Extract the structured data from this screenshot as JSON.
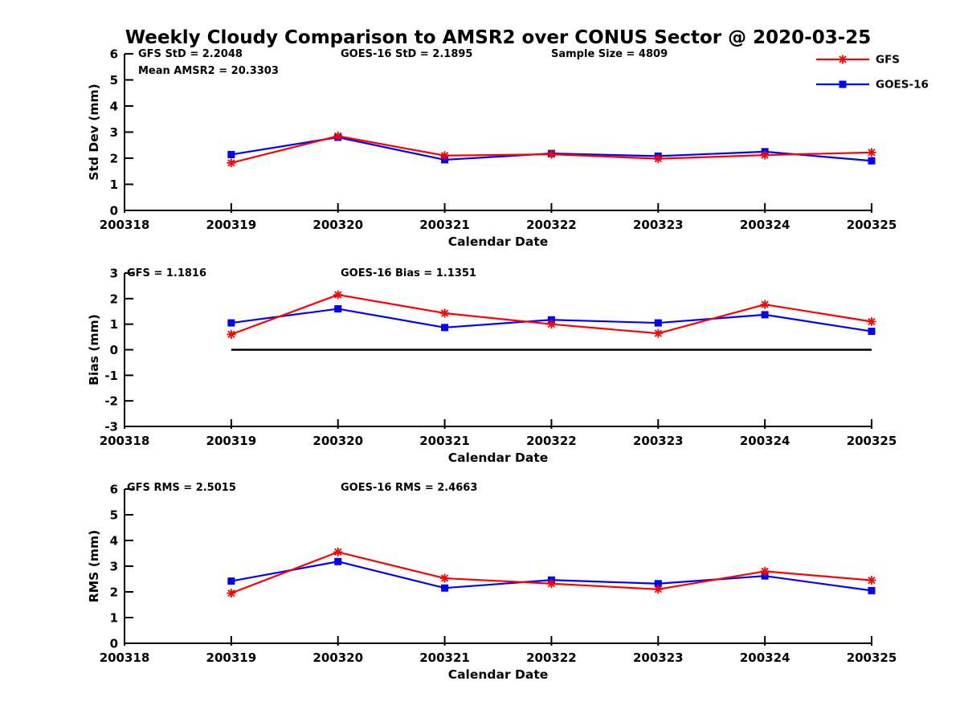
{
  "title": "Weekly Cloudy Comparison to AMSR2 over CONUS Sector @ 2020-03-25",
  "colors": {
    "gfs": "#ff0000",
    "goes16": "#0000ff",
    "axis": "#000000",
    "zero_line": "#000000"
  },
  "legend": {
    "position": "top-right",
    "items": [
      {
        "label": "GFS",
        "color": "#ff0000",
        "marker": "asterisk"
      },
      {
        "label": "GOES-16",
        "color": "#0000ff",
        "marker": "square"
      }
    ]
  },
  "chart_data": [
    {
      "type": "line",
      "ylabel": "Std Dev (mm)",
      "xlabel": "Calendar Date",
      "ylim": [
        0,
        6
      ],
      "yticks": [
        0,
        1,
        2,
        3,
        4,
        5,
        6
      ],
      "grid": false,
      "categories": [
        "200318",
        "200319",
        "200320",
        "200321",
        "200322",
        "200323",
        "200324",
        "200325"
      ],
      "annotations": [
        {
          "text": "GFS StD = 2.2048"
        },
        {
          "text": "Mean AMSR2 = 20.3303"
        },
        {
          "text": "GOES-16 StD = 2.1895"
        },
        {
          "text": "Sample Size = 4809"
        }
      ],
      "series": [
        {
          "name": "GFS",
          "color": "#ff0000",
          "marker": "asterisk",
          "x": [
            "200319",
            "200320",
            "200321",
            "200322",
            "200323",
            "200324",
            "200325"
          ],
          "values": [
            1.82,
            2.85,
            2.1,
            2.15,
            1.98,
            2.12,
            2.22
          ]
        },
        {
          "name": "GOES-16",
          "color": "#0000ff",
          "marker": "square",
          "x": [
            "200319",
            "200320",
            "200321",
            "200322",
            "200323",
            "200324",
            "200325"
          ],
          "values": [
            2.14,
            2.8,
            1.94,
            2.18,
            2.08,
            2.25,
            1.9
          ]
        }
      ]
    },
    {
      "type": "line",
      "ylabel": "Bias (mm)",
      "xlabel": "Calendar Date",
      "ylim": [
        -3,
        3
      ],
      "yticks": [
        -3,
        -2,
        -1,
        0,
        1,
        2,
        3
      ],
      "grid": false,
      "zero_line": true,
      "categories": [
        "200318",
        "200319",
        "200320",
        "200321",
        "200322",
        "200323",
        "200324",
        "200325"
      ],
      "annotations": [
        {
          "text": "GFS = 1.1816"
        },
        {
          "text": "GOES-16 Bias = 1.1351"
        }
      ],
      "series": [
        {
          "name": "GFS",
          "color": "#ff0000",
          "marker": "asterisk",
          "x": [
            "200319",
            "200320",
            "200321",
            "200322",
            "200323",
            "200324",
            "200325"
          ],
          "values": [
            0.6,
            2.15,
            1.43,
            1.0,
            0.64,
            1.77,
            1.1
          ]
        },
        {
          "name": "GOES-16",
          "color": "#0000ff",
          "marker": "square",
          "x": [
            "200319",
            "200320",
            "200321",
            "200322",
            "200323",
            "200324",
            "200325"
          ],
          "values": [
            1.05,
            1.6,
            0.87,
            1.17,
            1.05,
            1.37,
            0.72
          ]
        }
      ]
    },
    {
      "type": "line",
      "ylabel": "RMS (mm)",
      "xlabel": "Calendar Date",
      "ylim": [
        0,
        6
      ],
      "yticks": [
        0,
        1,
        2,
        3,
        4,
        5,
        6
      ],
      "grid": false,
      "categories": [
        "200318",
        "200319",
        "200320",
        "200321",
        "200322",
        "200323",
        "200324",
        "200325"
      ],
      "annotations": [
        {
          "text": "GFS RMS = 2.5015"
        },
        {
          "text": "GOES-16 RMS = 2.4663"
        }
      ],
      "series": [
        {
          "name": "GFS",
          "color": "#ff0000",
          "marker": "asterisk",
          "x": [
            "200319",
            "200320",
            "200321",
            "200322",
            "200323",
            "200324",
            "200325"
          ],
          "values": [
            1.95,
            3.55,
            2.53,
            2.32,
            2.1,
            2.8,
            2.45
          ]
        },
        {
          "name": "GOES-16",
          "color": "#0000ff",
          "marker": "square",
          "x": [
            "200319",
            "200320",
            "200321",
            "200322",
            "200323",
            "200324",
            "200325"
          ],
          "values": [
            2.42,
            3.18,
            2.15,
            2.46,
            2.32,
            2.62,
            2.05
          ]
        }
      ]
    }
  ]
}
